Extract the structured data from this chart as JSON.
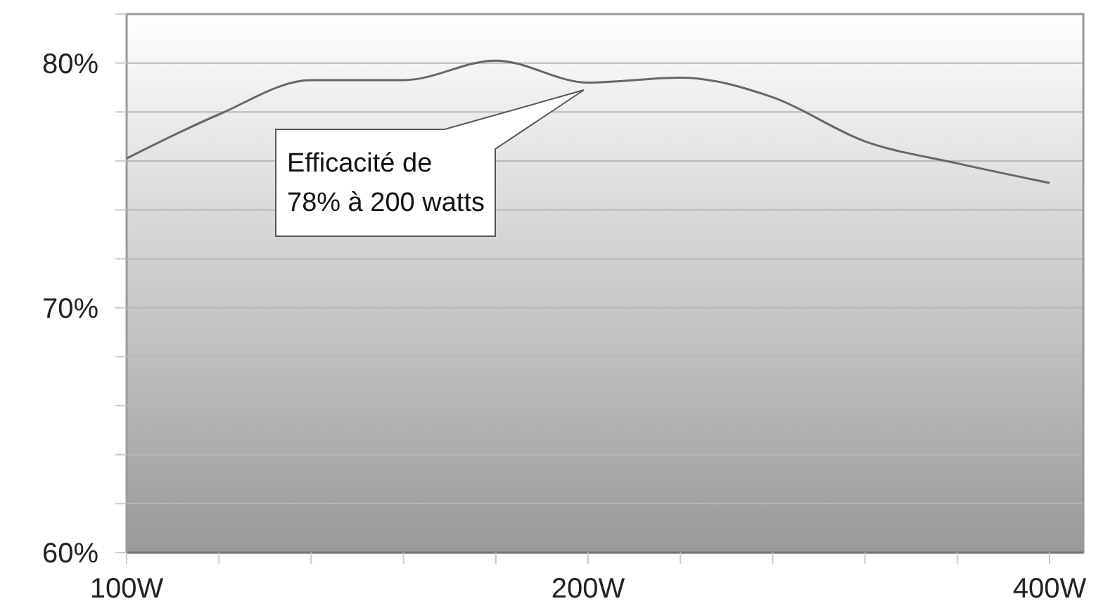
{
  "chart_data": {
    "type": "line",
    "categories": [
      "100W",
      null,
      null,
      null,
      null,
      "200W",
      null,
      null,
      null,
      null,
      "400W"
    ],
    "series": [
      {
        "color": "#666666",
        "values": [
          76.1,
          77.9,
          79.3,
          79.3,
          80.1,
          79.2,
          79.4,
          78.6,
          76.8,
          75.9,
          75.1
        ]
      }
    ],
    "ylim": [
      60,
      82
    ],
    "yticks": [
      {
        "value": 60,
        "label": "60%"
      },
      {
        "value": 62,
        "label": null
      },
      {
        "value": 64,
        "label": null
      },
      {
        "value": 66,
        "label": null
      },
      {
        "value": 68,
        "label": null
      },
      {
        "value": 70,
        "label": "70%"
      },
      {
        "value": 72,
        "label": null
      },
      {
        "value": 74,
        "label": null
      },
      {
        "value": 76,
        "label": null
      },
      {
        "value": 78,
        "label": null
      },
      {
        "value": 80,
        "label": "80%"
      },
      {
        "value": 82,
        "label": null
      }
    ],
    "grid": "y",
    "marker": "none",
    "line_style": "solid",
    "annotations": [
      "Efficacité de\n78% à 200 watts"
    ]
  }
}
